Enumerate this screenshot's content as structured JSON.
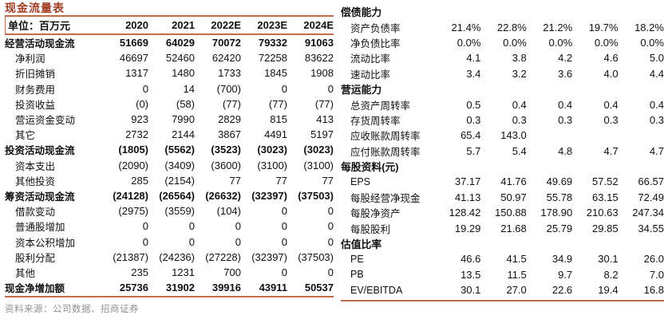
{
  "page": {
    "title": "现金流量表",
    "source_note": "资料来源：公司数据、招商证券",
    "colors": {
      "title_accent": "#A03B22",
      "rule_line": "#C06C49",
      "source_text_gray": "#8F8F8F"
    }
  },
  "cashflow_table": {
    "unit_label": "单位：百万元",
    "years": [
      "2020",
      "2021",
      "2022E",
      "2023E",
      "2024E"
    ],
    "rows": [
      {
        "label": "经营活动现金流",
        "bold": true,
        "indent": false,
        "values": [
          "51669",
          "64029",
          "70072",
          "79332",
          "91063"
        ]
      },
      {
        "label": "净利润",
        "bold": false,
        "indent": true,
        "values": [
          "46697",
          "52460",
          "62420",
          "72258",
          "83622"
        ]
      },
      {
        "label": "折旧摊销",
        "bold": false,
        "indent": true,
        "values": [
          "1317",
          "1480",
          "1733",
          "1845",
          "1908"
        ]
      },
      {
        "label": "财务费用",
        "bold": false,
        "indent": true,
        "values": [
          "0",
          "14",
          "(700)",
          "0",
          "0"
        ]
      },
      {
        "label": "投资收益",
        "bold": false,
        "indent": true,
        "values": [
          "(0)",
          "(58)",
          "(77)",
          "(77)",
          "(77)"
        ]
      },
      {
        "label": "营运资金变动",
        "bold": false,
        "indent": true,
        "values": [
          "923",
          "7990",
          "2829",
          "815",
          "413"
        ]
      },
      {
        "label": "其它",
        "bold": false,
        "indent": true,
        "values": [
          "2732",
          "2144",
          "3867",
          "4491",
          "5197"
        ]
      },
      {
        "label": "投资活动现金流",
        "bold": true,
        "indent": false,
        "values": [
          "(1805)",
          "(5562)",
          "(3523)",
          "(3023)",
          "(3023)"
        ]
      },
      {
        "label": "资本支出",
        "bold": false,
        "indent": true,
        "values": [
          "(2090)",
          "(3409)",
          "(3600)",
          "(3100)",
          "(3100)"
        ]
      },
      {
        "label": "其他投资",
        "bold": false,
        "indent": true,
        "values": [
          "285",
          "(2154)",
          "77",
          "77",
          "77"
        ]
      },
      {
        "label": "筹资活动现金流",
        "bold": true,
        "indent": false,
        "values": [
          "(24128)",
          "(26564)",
          "(26632)",
          "(32397)",
          "(37503)"
        ]
      },
      {
        "label": "借款变动",
        "bold": false,
        "indent": true,
        "values": [
          "(2975)",
          "(3559)",
          "(104)",
          "0",
          "0"
        ]
      },
      {
        "label": "普通股增加",
        "bold": false,
        "indent": true,
        "values": [
          "0",
          "0",
          "0",
          "0",
          "0"
        ]
      },
      {
        "label": "资本公积增加",
        "bold": false,
        "indent": true,
        "values": [
          "0",
          "0",
          "0",
          "0",
          "0"
        ]
      },
      {
        "label": "股利分配",
        "bold": false,
        "indent": true,
        "values": [
          "(21387)",
          "(24236)",
          "(27228)",
          "(32397)",
          "(37503)"
        ]
      },
      {
        "label": "其他",
        "bold": false,
        "indent": true,
        "values": [
          "235",
          "1231",
          "700",
          "0",
          "0"
        ]
      },
      {
        "label": "现金净增加额",
        "bold": true,
        "indent": false,
        "values": [
          "25736",
          "31902",
          "39916",
          "43911",
          "50537"
        ]
      }
    ]
  },
  "ratio_panel": {
    "sections": [
      {
        "header": "偿债能力",
        "rows": [
          {
            "label": "资产负债率",
            "values": [
              "21.4%",
              "22.8%",
              "21.2%",
              "19.7%",
              "18.2%"
            ]
          },
          {
            "label": "净负债比率",
            "values": [
              "0.0%",
              "0.0%",
              "0.0%",
              "0.0%",
              "0.0%"
            ]
          },
          {
            "label": "流动比率",
            "values": [
              "4.1",
              "3.8",
              "4.2",
              "4.6",
              "5.0"
            ]
          },
          {
            "label": "速动比率",
            "values": [
              "3.4",
              "3.2",
              "3.6",
              "4.0",
              "4.4"
            ]
          }
        ]
      },
      {
        "header": "营运能力",
        "rows": [
          {
            "label": "总资产周转率",
            "values": [
              "0.5",
              "0.4",
              "0.4",
              "0.4",
              "0.4"
            ]
          },
          {
            "label": "存货周转率",
            "values": [
              "0.3",
              "0.3",
              "0.3",
              "0.3",
              "0.3"
            ]
          },
          {
            "label": "应收账款周转率",
            "values": [
              "65.4",
              "143.0",
              "",
              "",
              ""
            ]
          },
          {
            "label": "应付账款周转率",
            "values": [
              "5.7",
              "5.4",
              "4.8",
              "4.7",
              "4.7"
            ]
          }
        ]
      },
      {
        "header": "每股资料(元)",
        "rows": [
          {
            "label": "EPS",
            "values": [
              "37.17",
              "41.76",
              "49.69",
              "57.52",
              "66.57"
            ]
          },
          {
            "label": "每股经营净现金",
            "values": [
              "41.13",
              "50.97",
              "55.78",
              "63.15",
              "72.49"
            ]
          },
          {
            "label": "每股净资产",
            "values": [
              "128.42",
              "150.88",
              "178.90",
              "210.63",
              "247.34"
            ]
          },
          {
            "label": "每股股利",
            "values": [
              "19.29",
              "21.68",
              "25.79",
              "29.85",
              "34.55"
            ]
          }
        ]
      },
      {
        "header": "估值比率",
        "rows": [
          {
            "label": "PE",
            "values": [
              "46.6",
              "41.5",
              "34.9",
              "30.1",
              "26.0"
            ]
          },
          {
            "label": "PB",
            "values": [
              "13.5",
              "11.5",
              "9.7",
              "8.2",
              "7.0"
            ]
          },
          {
            "label": "EV/EBITDA",
            "values": [
              "30.1",
              "27.0",
              "22.6",
              "19.4",
              "16.8"
            ]
          }
        ]
      }
    ]
  }
}
